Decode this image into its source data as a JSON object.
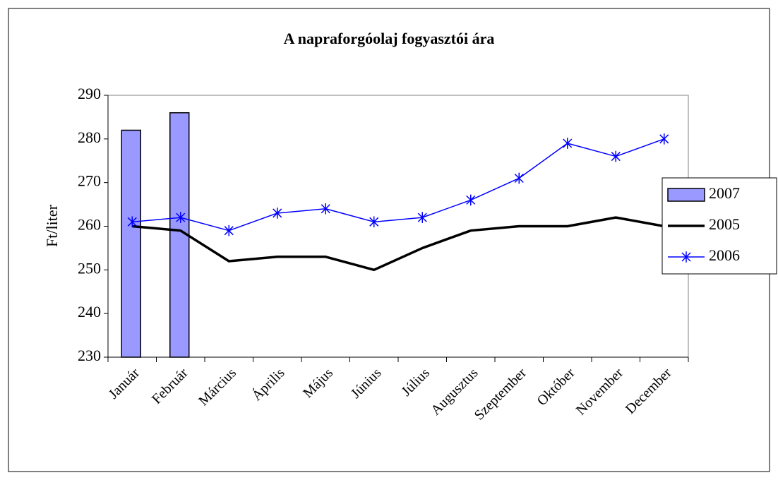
{
  "chart_data": {
    "type": "line",
    "title": "A napraforgóolaj fogyasztói ára",
    "y_label": "Ft/liter",
    "categories": [
      "Január",
      "Február",
      "Március",
      "Április",
      "Május",
      "Június",
      "Július",
      "Augusztus",
      "Szeptember",
      "Október",
      "November",
      "December"
    ],
    "series": [
      {
        "name": "2007",
        "type": "bar",
        "color": "#9999ff",
        "values": [
          282,
          286,
          null,
          null,
          null,
          null,
          null,
          null,
          null,
          null,
          null,
          null
        ]
      },
      {
        "name": "2005",
        "type": "line",
        "color": "#000000",
        "values": [
          260,
          259,
          252,
          253,
          253,
          250,
          255,
          259,
          260,
          260,
          262,
          260
        ]
      },
      {
        "name": "2006",
        "type": "line",
        "marker": "asterisk",
        "color": "#0000ff",
        "values": [
          261,
          262,
          259,
          263,
          264,
          261,
          262,
          266,
          271,
          279,
          276,
          280
        ]
      }
    ],
    "ylim": [
      230,
      290
    ],
    "yticks": [
      230,
      240,
      250,
      260,
      270,
      280,
      290
    ],
    "legend": "right"
  }
}
